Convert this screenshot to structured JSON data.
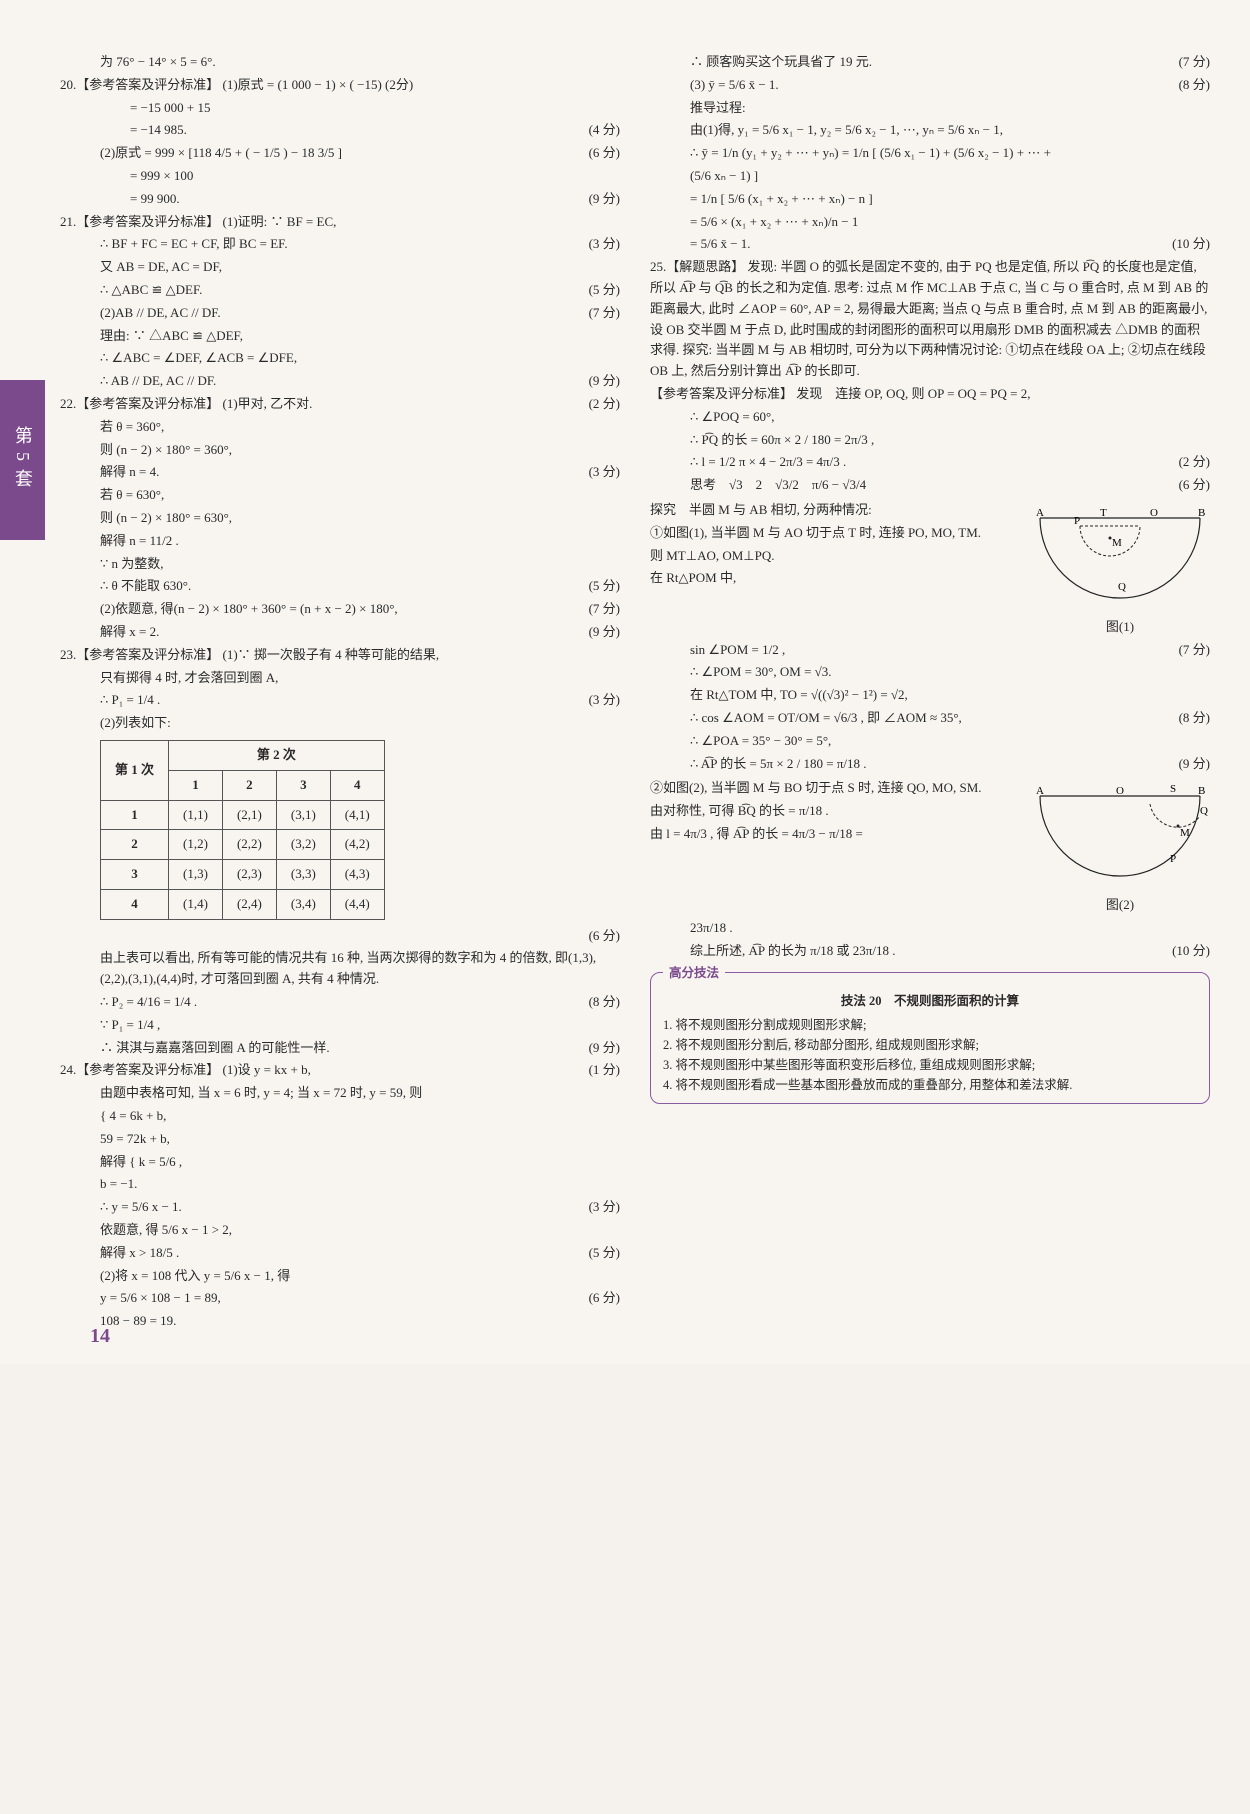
{
  "side_tab": "第5套",
  "page_number": "14",
  "left": {
    "l0": "为 76° − 14° × 5 = 6°.",
    "q20": "20.【参考答案及评分标准】 (1)原式 = (1 000 − 1) × ( −15) (2分)",
    "q20a": "= −15 000 + 15",
    "q20b": "= −14 985.",
    "q20b_s": "(4 分)",
    "q20c": "(2)原式 = 999 × [118 4/5 + ( − 1/5 ) − 18 3/5 ]",
    "q20c_s": "(6 分)",
    "q20d": "= 999 × 100",
    "q20e": "= 99 900.",
    "q20e_s": "(9 分)",
    "q21": "21.【参考答案及评分标准】 (1)证明: ∵ BF = EC,",
    "q21a": "∴ BF + FC = EC + CF, 即 BC = EF.",
    "q21a_s": "(3 分)",
    "q21b": "又 AB = DE, AC = DF,",
    "q21c": "∴ △ABC ≌ △DEF.",
    "q21c_s": "(5 分)",
    "q21d": "(2)AB // DE, AC // DF.",
    "q21d_s": "(7 分)",
    "q21e": "理由: ∵ △ABC ≌ △DEF,",
    "q21f": "∴ ∠ABC = ∠DEF, ∠ACB = ∠DFE,",
    "q21g": "∴ AB // DE, AC // DF.",
    "q21g_s": "(9 分)",
    "q22": "22.【参考答案及评分标准】 (1)甲对, 乙不对.",
    "q22_s": "(2 分)",
    "q22a": "若 θ = 360°,",
    "q22b": "则 (n − 2) × 180° = 360°,",
    "q22c": "解得 n = 4.",
    "q22c_s": "(3 分)",
    "q22d": "若 θ = 630°,",
    "q22e": "则 (n − 2) × 180° = 630°,",
    "q22f": "解得 n = 11/2 .",
    "q22g": "∵ n 为整数,",
    "q22h": "∴ θ 不能取 630°.",
    "q22h_s": "(5 分)",
    "q22i": "(2)依题意, 得(n − 2) × 180° + 360° = (n + x − 2) × 180°,",
    "q22i_s": "(7 分)",
    "q22j": "解得 x = 2.",
    "q22j_s": "(9 分)",
    "q23": "23.【参考答案及评分标准】 (1)∵ 掷一次骰子有 4 种等可能的结果,",
    "q23a": "只有掷得 4 时, 才会落回到圈 A,",
    "q23b": "∴ P₁ = 1/4 .",
    "q23b_s": "(3 分)",
    "q23c": "(2)列表如下:",
    "table": {
      "col_head": "第 2 次",
      "row_head": "第 1 次",
      "cols": [
        "1",
        "2",
        "3",
        "4"
      ],
      "rows": [
        [
          "1",
          "(1,1)",
          "(2,1)",
          "(3,1)",
          "(4,1)"
        ],
        [
          "2",
          "(1,2)",
          "(2,2)",
          "(3,2)",
          "(4,2)"
        ],
        [
          "3",
          "(1,3)",
          "(2,3)",
          "(3,3)",
          "(4,3)"
        ],
        [
          "4",
          "(1,4)",
          "(2,4)",
          "(3,4)",
          "(4,4)"
        ]
      ]
    },
    "q23d_s": "(6 分)",
    "q23e": "由上表可以看出, 所有等可能的情况共有 16 种, 当两次掷得的数字和为 4 的倍数, 即(1,3),(2,2),(3,1),(4,4)时, 才可落回到圈 A, 共有 4 种情况.",
    "q23f": "∴ P₂ = 4/16 = 1/4 .",
    "q23f_s": "(8 分)",
    "q23g": "∵ P₁ = 1/4 ,",
    "q23h": "∴ 淇淇与嘉嘉落回到圈 A 的可能性一样.",
    "q23h_s": "(9 分)",
    "q24": "24.【参考答案及评分标准】 (1)设 y = kx + b,",
    "q24_s": "(1 分)",
    "q24a": "由题中表格可知, 当 x = 6 时, y = 4; 当 x = 72 时, y = 59, 则",
    "q24b": "{ 4 = 6k + b,",
    "q24c": "  59 = 72k + b,",
    "q24d": "解得 { k = 5/6 ,",
    "q24e": "       b = −1.",
    "q24f": "∴ y = 5/6 x − 1.",
    "q24f_s": "(3 分)",
    "q24g": "依题意, 得 5/6 x − 1 > 2,",
    "q24h": "解得 x > 18/5 .",
    "q24h_s": "(5 分)",
    "q24i": "(2)将 x = 108 代入 y = 5/6 x − 1, 得",
    "q24j": "y = 5/6 × 108 − 1 = 89,",
    "q24j_s": "(6 分)",
    "q24k": "108 − 89 = 19."
  },
  "right": {
    "r0": "∴ 顾客购买这个玩具省了 19 元.",
    "r0_s": "(7 分)",
    "r1": "(3) ȳ = 5/6 x̄ − 1.",
    "r1_s": "(8 分)",
    "r2": "推导过程:",
    "r3": "由(1)得, y₁ = 5/6 x₁ − 1, y₂ = 5/6 x₂ − 1, ⋯, yₙ = 5/6 xₙ − 1,",
    "r4": "∴ ȳ = 1/n (y₁ + y₂ + ⋯ + yₙ) = 1/n [ (5/6 x₁ − 1) + (5/6 x₂ − 1) + ⋯ +",
    "r5": "(5/6 xₙ − 1) ]",
    "r6": "= 1/n [ 5/6 (x₁ + x₂ + ⋯ + xₙ) − n ]",
    "r7": "= 5/6 × (x₁ + x₂ + ⋯ + xₙ)/n − 1",
    "r8": "= 5/6 x̄ − 1.",
    "r8_s": "(10 分)",
    "q25": "25.【解题思路】 发现: 半圆 O 的弧长是固定不变的, 由于 PQ 也是定值, 所以 P͡Q 的长度也是定值, 所以 A͡P 与 Q͡B 的长之和为定值. 思考: 过点 M 作 MC⊥AB 于点 C, 当 C 与 O 重合时, 点 M 到 AB 的距离最大, 此时 ∠AOP = 60°, AP = 2, 易得最大距离; 当点 Q 与点 B 重合时, 点 M 到 AB 的距离最小, 设 OB 交半圆 M 于点 D, 此时围成的封闭图形的面积可以用扇形 DMB 的面积减去 △DMB 的面积求得. 探究: 当半圆 M 与 AB 相切时, 可分为以下两种情况讨论: ①切点在线段 OA 上; ②切点在线段 OB 上, 然后分别计算出 A͡P 的长即可.",
    "ans": "【参考答案及评分标准】 发现　连接 OP, OQ, 则 OP = OQ = PQ = 2,",
    "a1": "∴ ∠POQ = 60°,",
    "a2": "∴ P͡Q 的长 = 60π × 2 / 180 = 2π/3 ,",
    "a3": "∴ l = 1/2 π × 4 − 2π/3 = 4π/3 .",
    "a3_s": "(2 分)",
    "a4": "思考　√3　2　√3/2　π/6 − √3/4",
    "a4_s": "(6 分)",
    "a5": "探究　半圆 M 与 AB 相切, 分两种情况:",
    "a6": "①如图(1), 当半圆 M 与 AO 切于点 T 时, 连接 PO, MO, TM.",
    "a7": "则 MT⊥AO, OM⊥PQ.",
    "a8": "在 Rt△POM 中,",
    "fig1_cap": "图(1)",
    "a9": "sin ∠POM = 1/2 ,",
    "a9_s": "(7 分)",
    "a10": "∴ ∠POM = 30°, OM = √3.",
    "a11": "在 Rt△TOM 中, TO = √((√3)² − 1²) = √2,",
    "a12": "∴ cos ∠AOM = OT/OM = √6/3 , 即 ∠AOM ≈ 35°,",
    "a12_s": "(8 分)",
    "a13": "∴ ∠POA = 35° − 30° = 5°,",
    "a14": "∴ A͡P 的长 = 5π × 2 / 180 = π/18 .",
    "a14_s": "(9 分)",
    "a15": "②如图(2), 当半圆 M 与 BO 切于点 S 时, 连接 QO, MO, SM.",
    "a16": "由对称性, 可得 B͡Q 的长 = π/18 .",
    "a17": "由 l = 4π/3 , 得 A͡P 的长 = 4π/3 − π/18 =",
    "fig2_cap": "图(2)",
    "a18": "23π/18 .",
    "a19": "综上所述, A͡P 的长为 π/18 或 23π/18 .",
    "a19_s": "(10 分)"
  },
  "tipbox": {
    "label": "高分技法",
    "title": "技法 20　不规则图形面积的计算",
    "items": [
      "1. 将不规则图形分割成规则图形求解;",
      "2. 将不规则图形分割后, 移动部分图形, 组成规则图形求解;",
      "3. 将不规则图形中某些图形等面积变形后移位, 重组成规则图形求解;",
      "4. 将不规则图形看成一些基本图形叠放而成的重叠部分, 用整体和差法求解."
    ]
  },
  "diagrams": {
    "fig1": {
      "A": "A",
      "B": "B",
      "P": "P",
      "Q": "Q",
      "O": "O",
      "T": "T",
      "M": "M"
    },
    "fig2": {
      "A": "A",
      "B": "B",
      "P": "P",
      "Q": "Q",
      "O": "O",
      "S": "S",
      "M": "M"
    }
  },
  "colors": {
    "accent": "#7b4a8c",
    "text": "#2a2a2a",
    "bg": "#f8f5f0",
    "border": "#555555"
  }
}
